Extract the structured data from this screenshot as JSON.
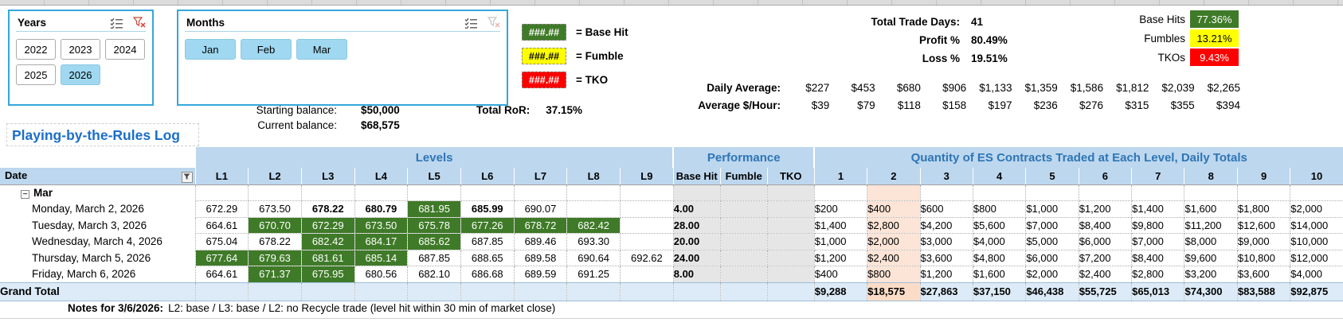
{
  "icons": {
    "multi_select": "checklist",
    "clear_filter": "funnel-x",
    "date_filter": "funnel",
    "collapse_group": "minus"
  },
  "slicers": {
    "years": {
      "title": "Years",
      "buttons": [
        {
          "label": "2022",
          "selected": false
        },
        {
          "label": "2023",
          "selected": false
        },
        {
          "label": "2024",
          "selected": false
        },
        {
          "label": "2025",
          "selected": false
        },
        {
          "label": "2026",
          "selected": true
        }
      ]
    },
    "months": {
      "title": "Months",
      "buttons": [
        {
          "label": "Jan",
          "selected": true
        },
        {
          "label": "Feb",
          "selected": true
        },
        {
          "label": "Mar",
          "selected": true
        }
      ]
    }
  },
  "legend": {
    "items": [
      {
        "pattern": "###.##",
        "label": "= Base Hit",
        "bg": "#3F7A28",
        "fg": "#FFFFFF"
      },
      {
        "pattern": "###.##",
        "label": "= Fumble",
        "bg": "#FFFF00",
        "fg": "#000000"
      },
      {
        "pattern": "###.##",
        "label": "= TKO",
        "bg": "#FF0000",
        "fg": "#FFFFFF"
      }
    ]
  },
  "balances": {
    "starting_label": "Starting balance:",
    "starting_value": "$50,000",
    "current_label": "Current balance:",
    "current_value": "$68,575",
    "ror_label": "Total RoR:",
    "ror_value": "37.15%"
  },
  "stats": {
    "summary": [
      {
        "label": "Total Trade Days:",
        "value": "41"
      },
      {
        "label": "Profit %",
        "value": "80.49%"
      },
      {
        "label": "Loss %",
        "value": "19.51%"
      }
    ],
    "hit_rates": [
      {
        "label": "Base Hits",
        "value": "77.36%",
        "bg": "#3F7A28",
        "fg": "#FFFFFF"
      },
      {
        "label": "Fumbles",
        "value": "13.21%",
        "bg": "#FFFF00",
        "fg": "#000000"
      },
      {
        "label": "TKOs",
        "value": "9.43%",
        "bg": "#FF0000",
        "fg": "#FFFFFF"
      }
    ],
    "daily_average_label": "Daily Average:",
    "daily_average": [
      "$227",
      "$453",
      "$680",
      "$906",
      "$1,133",
      "$1,359",
      "$1,586",
      "$1,812",
      "$2,039",
      "$2,265"
    ],
    "avg_per_hour_label": "Average $/Hour:",
    "avg_per_hour": [
      "$39",
      "$79",
      "$118",
      "$158",
      "$197",
      "$236",
      "$276",
      "$315",
      "$355",
      "$394"
    ]
  },
  "table": {
    "title": "Playing-by-the-Rules Log",
    "date_header": "Date",
    "group_headers": {
      "levels": "Levels",
      "performance": "Performance",
      "quantity": "Quantity of ES Contracts Traded at Each Level, Daily Totals"
    },
    "level_headers": [
      "L1",
      "L2",
      "L3",
      "L4",
      "L5",
      "L6",
      "L7",
      "L8",
      "L9"
    ],
    "perf_headers": [
      "Base Hit",
      "Fumble",
      "TKO"
    ],
    "qty_headers": [
      "1",
      "2",
      "3",
      "4",
      "5",
      "6",
      "7",
      "8",
      "9",
      "10"
    ],
    "month_group": "Mar",
    "rows": [
      {
        "date": "Monday, March 2, 2026",
        "levels": [
          {
            "v": "672.29",
            "s": "p"
          },
          {
            "v": "673.50",
            "s": "p"
          },
          {
            "v": "678.22",
            "s": "b"
          },
          {
            "v": "680.79",
            "s": "b"
          },
          {
            "v": "681.95",
            "s": "g"
          },
          {
            "v": "685.99",
            "s": "b"
          },
          {
            "v": "690.07",
            "s": "p"
          },
          {
            "v": "",
            "s": "p"
          },
          {
            "v": "",
            "s": "p"
          }
        ],
        "base_hit": "4.00",
        "fumble": "",
        "tko": "",
        "qty": [
          "$200",
          "$400",
          "$600",
          "$800",
          "$1,000",
          "$1,200",
          "$1,400",
          "$1,600",
          "$1,800",
          "$2,000"
        ]
      },
      {
        "date": "Tuesday, March 3, 2026",
        "levels": [
          {
            "v": "664.61",
            "s": "p"
          },
          {
            "v": "670.70",
            "s": "g"
          },
          {
            "v": "672.29",
            "s": "g"
          },
          {
            "v": "673.50",
            "s": "g"
          },
          {
            "v": "675.78",
            "s": "g"
          },
          {
            "v": "677.26",
            "s": "g"
          },
          {
            "v": "678.72",
            "s": "g"
          },
          {
            "v": "682.42",
            "s": "g"
          },
          {
            "v": "",
            "s": "p"
          }
        ],
        "base_hit": "28.00",
        "fumble": "",
        "tko": "",
        "qty": [
          "$1,400",
          "$2,800",
          "$4,200",
          "$5,600",
          "$7,000",
          "$8,400",
          "$9,800",
          "$11,200",
          "$12,600",
          "$14,000"
        ]
      },
      {
        "date": "Wednesday, March 4, 2026",
        "levels": [
          {
            "v": "675.04",
            "s": "p"
          },
          {
            "v": "678.22",
            "s": "p"
          },
          {
            "v": "682.42",
            "s": "g"
          },
          {
            "v": "684.17",
            "s": "g"
          },
          {
            "v": "685.62",
            "s": "g"
          },
          {
            "v": "687.85",
            "s": "p"
          },
          {
            "v": "689.46",
            "s": "p"
          },
          {
            "v": "693.30",
            "s": "p"
          },
          {
            "v": "",
            "s": "p"
          }
        ],
        "base_hit": "20.00",
        "fumble": "",
        "tko": "",
        "qty": [
          "$1,000",
          "$2,000",
          "$3,000",
          "$4,000",
          "$5,000",
          "$6,000",
          "$7,000",
          "$8,000",
          "$9,000",
          "$10,000"
        ]
      },
      {
        "date": "Thursday, March 5, 2026",
        "levels": [
          {
            "v": "677.64",
            "s": "g"
          },
          {
            "v": "679.63",
            "s": "g"
          },
          {
            "v": "681.61",
            "s": "g"
          },
          {
            "v": "685.14",
            "s": "g"
          },
          {
            "v": "687.85",
            "s": "p"
          },
          {
            "v": "688.65",
            "s": "p"
          },
          {
            "v": "689.58",
            "s": "p"
          },
          {
            "v": "690.64",
            "s": "p"
          },
          {
            "v": "692.62",
            "s": "p"
          }
        ],
        "base_hit": "24.00",
        "fumble": "",
        "tko": "",
        "qty": [
          "$1,200",
          "$2,400",
          "$3,600",
          "$4,800",
          "$6,000",
          "$7,200",
          "$8,400",
          "$9,600",
          "$10,800",
          "$12,000"
        ]
      },
      {
        "date": "Friday, March 6, 2026",
        "levels": [
          {
            "v": "664.61",
            "s": "p"
          },
          {
            "v": "671.37",
            "s": "g"
          },
          {
            "v": "675.95",
            "s": "g"
          },
          {
            "v": "680.56",
            "s": "p"
          },
          {
            "v": "682.10",
            "s": "p"
          },
          {
            "v": "686.68",
            "s": "p"
          },
          {
            "v": "689.59",
            "s": "p"
          },
          {
            "v": "691.25",
            "s": "p"
          },
          {
            "v": "",
            "s": "p"
          }
        ],
        "base_hit": "8.00",
        "fumble": "",
        "tko": "",
        "qty": [
          "$400",
          "$800",
          "$1,200",
          "$1,600",
          "$2,000",
          "$2,400",
          "$2,800",
          "$3,200",
          "$3,600",
          "$4,000"
        ]
      }
    ],
    "grand_total": {
      "label": "Grand Total",
      "qty": [
        "$9,288",
        "$18,575",
        "$27,863",
        "$37,150",
        "$46,438",
        "$55,725",
        "$65,013",
        "$74,300",
        "$83,588",
        "$92,875"
      ]
    }
  },
  "notes": {
    "label": "Notes for 3/6/2026:",
    "text": "L2: base / L3: base / L2: no Recycle trade  (level hit within 30 min of market close)"
  }
}
